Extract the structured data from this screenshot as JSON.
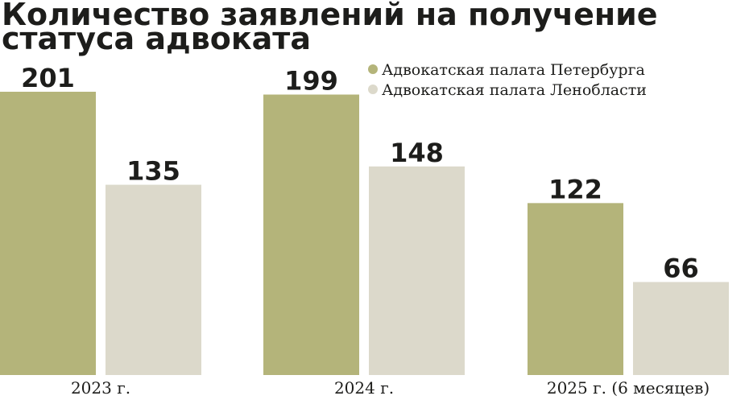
{
  "chart_data": {
    "type": "bar",
    "title_lines": [
      "Количество заявлений на получение",
      "статуса адвоката"
    ],
    "categories": [
      "2023 г.",
      "2024 г.",
      "2025 г. (6 месяцев)"
    ],
    "series": [
      {
        "name": "Адвокатская палата Петербурга",
        "values": [
          201,
          199,
          122
        ],
        "color": "#b4b47a"
      },
      {
        "name": "Адвокатская палата Ленобласти",
        "values": [
          135,
          148,
          66
        ],
        "color": "#dcd9cb"
      }
    ],
    "ylim": [
      0,
      201
    ],
    "legend_position": "top-right",
    "grid": false
  }
}
